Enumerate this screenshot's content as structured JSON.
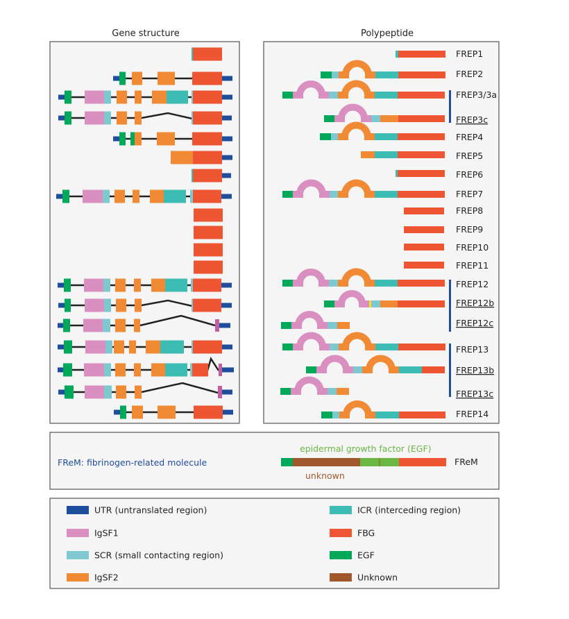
{
  "panels": {
    "gene_title": "Gene structure",
    "poly_title": "Polypeptide"
  },
  "colors": {
    "UTR": "#1f4e9c",
    "IgSF1": "#d98fc0",
    "SCR": "#7ec8d0",
    "IgSF2": "#f08a35",
    "ICR": "#3cbcb3",
    "FBG": "#ee5533",
    "EGF": "#00a859",
    "Unknown": "#a0582c",
    "exon_alt": "#c060a0",
    "variant": "#f5e020",
    "egf_frem": "#6ab744",
    "intron": "#222222",
    "group_bar": "#1f4e9c",
    "box_border": "#555555",
    "panel_bg": "#f5f5f5"
  },
  "proteins": [
    {
      "label": "FREP1",
      "underline": false
    },
    {
      "label": "FREP2",
      "underline": false
    },
    {
      "label": "FREP3/3a",
      "underline": false
    },
    {
      "label": "FREP3c",
      "underline": true
    },
    {
      "label": "FREP4",
      "underline": false
    },
    {
      "label": "FREP5",
      "underline": false
    },
    {
      "label": "FREP6",
      "underline": false
    },
    {
      "label": "FREP7",
      "underline": false
    },
    {
      "label": "FREP8",
      "underline": false
    },
    {
      "label": "FREP9",
      "underline": false
    },
    {
      "label": "FREP10",
      "underline": false
    },
    {
      "label": "FREP11",
      "underline": false
    },
    {
      "label": "FREP12",
      "underline": false
    },
    {
      "label": "FREP12b",
      "underline": true
    },
    {
      "label": "FREP12c",
      "underline": true
    },
    {
      "label": "FREP13",
      "underline": false
    },
    {
      "label": "FREP13b",
      "underline": true
    },
    {
      "label": "FREP13c",
      "underline": true
    },
    {
      "label": "FREP14",
      "underline": false
    }
  ],
  "frem": {
    "definition": "FReM: fibrinogen-related molecule",
    "egf_label": "epidermal growth factor (EGF)",
    "unknown_label": "unknown",
    "bar_label": "FReM"
  },
  "legend": [
    {
      "key": "UTR",
      "label": "UTR (untranslated region)"
    },
    {
      "key": "IgSF1",
      "label": "IgSF1"
    },
    {
      "key": "SCR",
      "label": "SCR (small contacting region)"
    },
    {
      "key": "IgSF2",
      "label": "IgSF2"
    },
    {
      "key": "ICR",
      "label": "ICR (interceding region)"
    },
    {
      "key": "FBG",
      "label": "FBG"
    },
    {
      "key": "EGF",
      "label": "EGF"
    },
    {
      "key": "Unknown",
      "label": "Unknown"
    }
  ]
}
